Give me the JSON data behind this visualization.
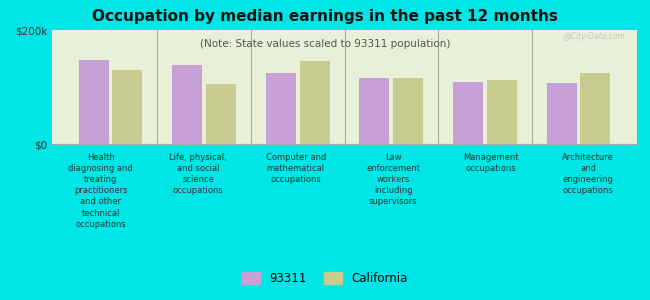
{
  "title": "Occupation by median earnings in the past 12 months",
  "subtitle": "(Note: State values scaled to 93311 population)",
  "categories": [
    "Health\ndiagnosing and\ntreating\npractitioners\nand other\ntechnical\noccupations",
    "Life, physical,\nand social\nscience\noccupations",
    "Computer and\nmathematical\noccupations",
    "Law\nenforcement\nworkers\nincluding\nsupervisors",
    "Management\noccupations",
    "Architecture\nand\nengineering\noccupations"
  ],
  "values_93311": [
    148000,
    138000,
    125000,
    115000,
    108000,
    107000
  ],
  "values_california": [
    130000,
    105000,
    145000,
    115000,
    112000,
    125000
  ],
  "color_93311": "#c8a0d8",
  "color_california": "#c8cc90",
  "background_chart": "#e8f0d8",
  "background_fig": "#00e5e5",
  "ylim": [
    0,
    200000
  ],
  "yticks": [
    0,
    200000
  ],
  "ytick_labels": [
    "$0",
    "$200k"
  ],
  "legend_93311": "93311",
  "legend_california": "California",
  "watermark": "@City-Data.com"
}
